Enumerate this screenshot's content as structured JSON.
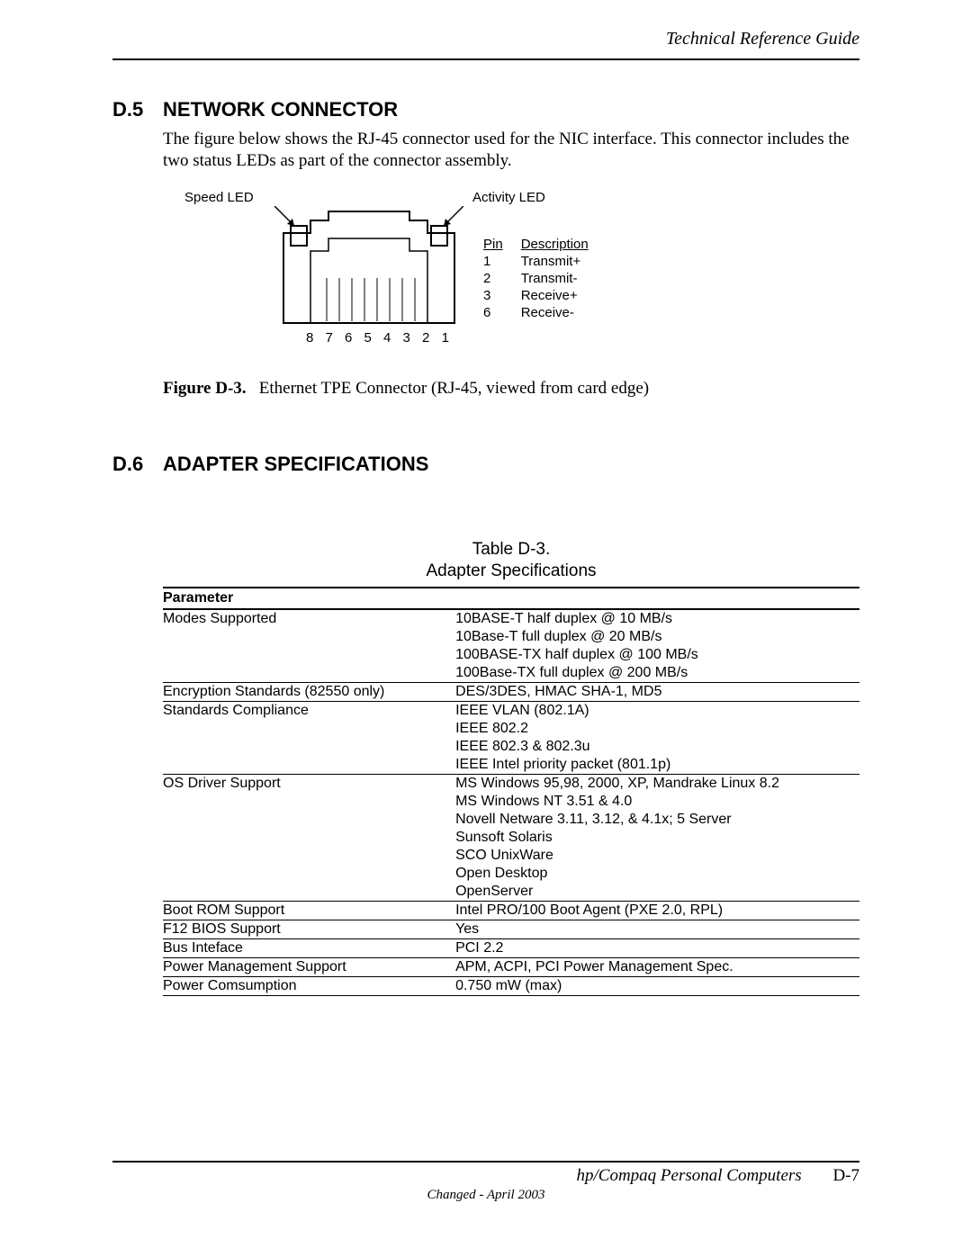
{
  "header": {
    "right": "Technical Reference Guide"
  },
  "section_d5": {
    "num": "D.5",
    "title": "NETWORK CONNECTOR",
    "para": "The figure below shows the RJ-45 connector used for the NIC interface. This connector includes the two status LEDs as part of the connector assembly."
  },
  "figure": {
    "speed_led": "Speed LED",
    "activity_led": "Activity LED",
    "pin_numbers": "8 7 6 5 4 3 2 1",
    "pin_header_pin": "Pin",
    "pin_header_desc": "Description",
    "pins": [
      {
        "pin": "1",
        "desc": "Transmit+"
      },
      {
        "pin": "2",
        "desc": "Transmit-"
      },
      {
        "pin": "3",
        "desc": "Receive+"
      },
      {
        "pin": "6",
        "desc": "Receive-"
      }
    ],
    "caption_bold": "Figure D-3.",
    "caption_rest": "Ethernet TPE Connector (RJ-45, viewed from card edge)"
  },
  "section_d6": {
    "num": "D.6",
    "title": "ADAPTER SPECIFICATIONS"
  },
  "table": {
    "title_line1": "Table D-3.",
    "title_line2": "Adapter Specifications",
    "header_param": "Parameter",
    "rows": [
      {
        "param": "Modes Supported",
        "values": [
          "10BASE-T half duplex @ 10 MB/s",
          "10Base-T full duplex @ 20 MB/s",
          "100BASE-TX half duplex @ 100 MB/s",
          "100Base-TX full duplex @ 200 MB/s"
        ]
      },
      {
        "param": "Encryption Standards (82550 only)",
        "values": [
          "DES/3DES, HMAC SHA-1, MD5"
        ]
      },
      {
        "param": "Standards Compliance",
        "values": [
          "IEEE VLAN (802.1A)",
          "IEEE 802.2",
          "IEEE 802.3 & 802.3u",
          "IEEE Intel priority packet (801.1p)"
        ]
      },
      {
        "param": "OS Driver Support",
        "values": [
          "MS Windows 95,98, 2000, XP, Mandrake Linux 8.2",
          "MS Windows NT 3.51 & 4.0",
          "Novell Netware 3.11, 3.12, & 4.1x; 5 Server",
          "Sunsoft Solaris",
          "SCO UnixWare",
          "Open Desktop",
          "OpenServer"
        ]
      },
      {
        "param": "Boot ROM Support",
        "values": [
          "Intel PRO/100 Boot Agent (PXE 2.0, RPL)"
        ]
      },
      {
        "param": "F12 BIOS Support",
        "values": [
          "Yes"
        ]
      },
      {
        "param": "Bus Inteface",
        "values": [
          "PCI 2.2"
        ]
      },
      {
        "param": "Power Management Support",
        "values": [
          "APM, ACPI, PCI Power Management Spec."
        ]
      },
      {
        "param": "Power Comsumption",
        "values": [
          "0.750 mW (max)"
        ]
      }
    ]
  },
  "footer": {
    "line1_italic": "hp/Compaq Personal Computers",
    "pagenum": "D-7",
    "line2": "Changed - April 2003"
  }
}
